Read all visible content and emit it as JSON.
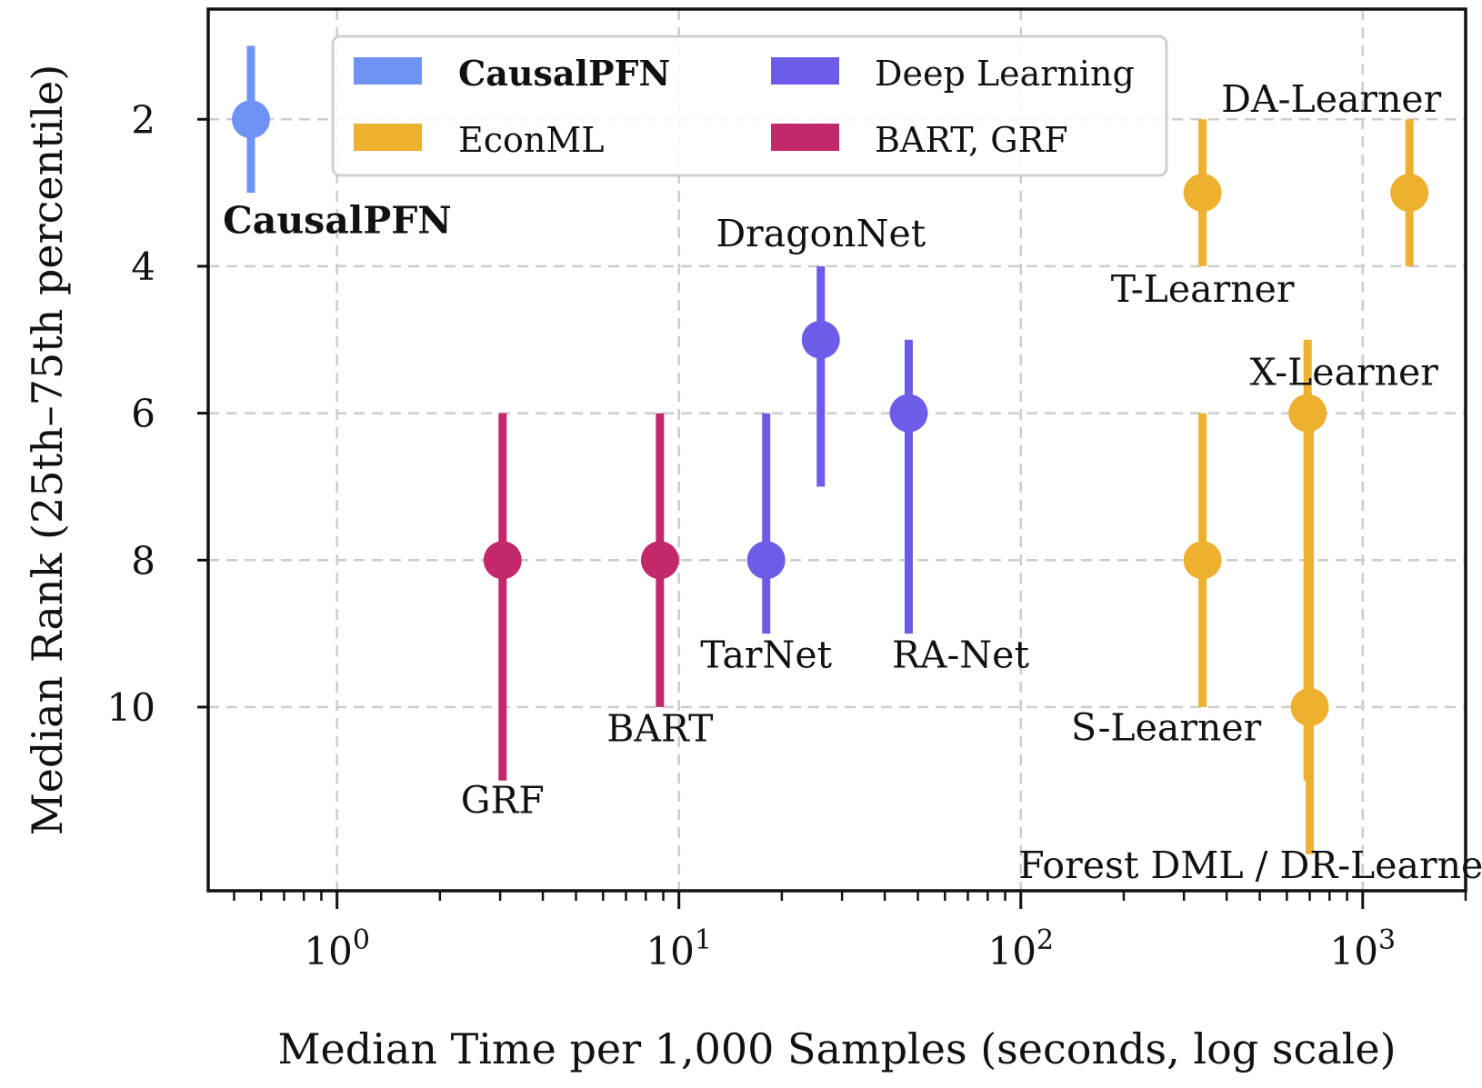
{
  "chart_data": {
    "type": "scatter",
    "title": "",
    "xlabel": "Median Time per 1,000 Samples (seconds, log scale)",
    "ylabel": "Median Rank (25th–75th percentile)",
    "xscale": "log",
    "xlim": [
      0.42,
      2000
    ],
    "ylim": [
      12.5,
      0.5
    ],
    "yticks": [
      2,
      4,
      6,
      8,
      10
    ],
    "xticks": [
      {
        "value": 1,
        "base": "10",
        "exp": "0"
      },
      {
        "value": 10,
        "base": "10",
        "exp": "1"
      },
      {
        "value": 100,
        "base": "10",
        "exp": "2"
      },
      {
        "value": 1000,
        "base": "10",
        "exp": "3"
      }
    ],
    "grid": true,
    "legend_position": "top",
    "colors": {
      "CausalPFN": "#6e93f5",
      "Deep Learning": "#6c5ce7",
      "EconML": "#edb02f",
      "BART, GRF": "#c2296b"
    },
    "legend": [
      {
        "label": "CausalPFN",
        "group": "CausalPFN",
        "bold": true
      },
      {
        "label": "Deep Learning",
        "group": "Deep Learning",
        "bold": false
      },
      {
        "label": "EconML",
        "group": "EconML",
        "bold": false
      },
      {
        "label": "BART, GRF",
        "group": "BART, GRF",
        "bold": false
      }
    ],
    "series": [
      {
        "name": "CausalPFN",
        "group": "CausalPFN",
        "x": 0.56,
        "median": 2,
        "low": 1,
        "high": 3,
        "label": "CausalPFN",
        "bold": true
      },
      {
        "name": "GRF",
        "group": "BART, GRF",
        "x": 3.05,
        "median": 8,
        "low": 6,
        "high": 11,
        "label": "GRF",
        "bold": false
      },
      {
        "name": "BART",
        "group": "BART, GRF",
        "x": 8.8,
        "median": 8,
        "low": 6,
        "high": 10,
        "label": "BART",
        "bold": false
      },
      {
        "name": "TarNet",
        "group": "Deep Learning",
        "x": 18,
        "median": 8,
        "low": 6,
        "high": 9,
        "label": "TarNet",
        "bold": false
      },
      {
        "name": "DragonNet",
        "group": "Deep Learning",
        "x": 26,
        "median": 5,
        "low": 4,
        "high": 7,
        "label": "DragonNet",
        "bold": false
      },
      {
        "name": "RA-Net",
        "group": "Deep Learning",
        "x": 47,
        "median": 6,
        "low": 5,
        "high": 9,
        "label": "RA-Net",
        "bold": false
      },
      {
        "name": "T-Learner",
        "group": "EconML",
        "x": 340,
        "median": 3,
        "low": 2,
        "high": 4,
        "label": "T-Learner",
        "bold": false
      },
      {
        "name": "S-Learner",
        "group": "EconML",
        "x": 340,
        "median": 8,
        "low": 6,
        "high": 10,
        "label": "S-Learner",
        "bold": false
      },
      {
        "name": "X-Learner",
        "group": "EconML",
        "x": 690,
        "median": 6,
        "low": 5,
        "high": 11,
        "label": "X-Learner",
        "bold": false
      },
      {
        "name": "Forest DML / DR-Learner",
        "group": "EconML",
        "x": 700,
        "median": 10,
        "low": 6,
        "high": 12,
        "label": "Forest DML /  DR-Learner",
        "bold": false
      },
      {
        "name": "DA-Learner",
        "group": "EconML",
        "x": 1370,
        "median": 3,
        "low": 2,
        "high": 4,
        "label": "DA-Learner",
        "bold": false
      }
    ]
  }
}
